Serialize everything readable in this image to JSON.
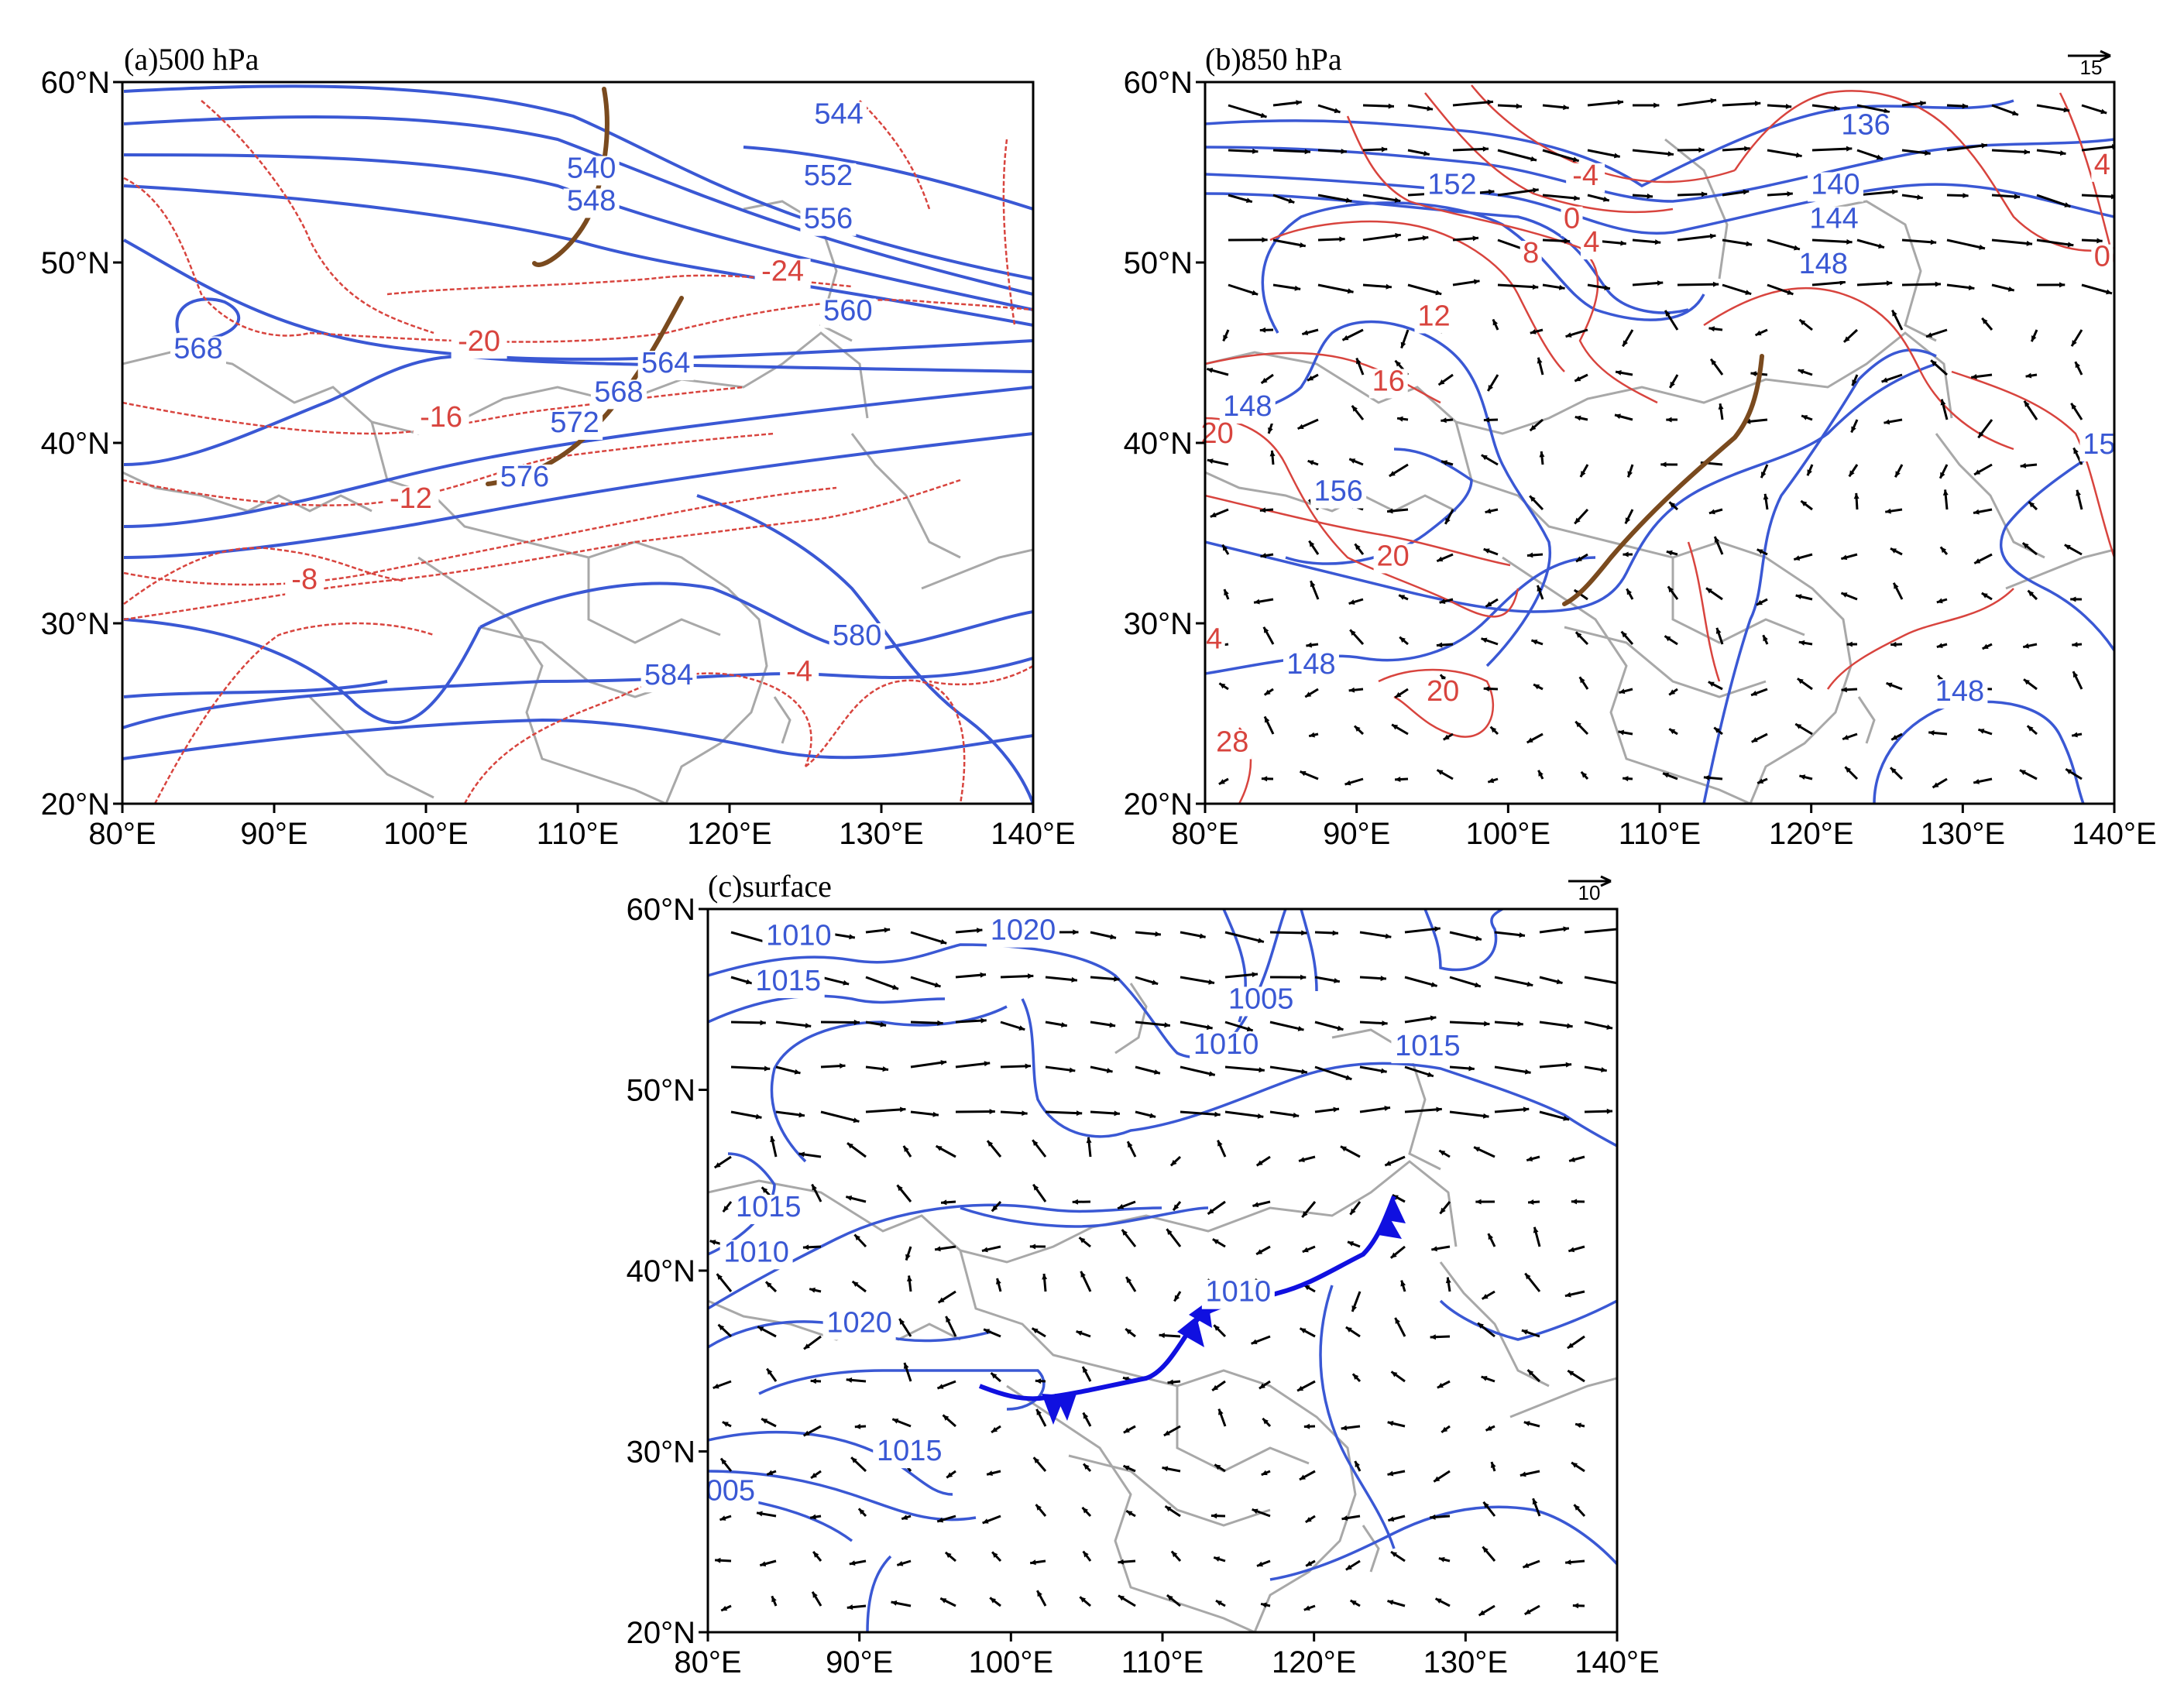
{
  "figure": {
    "colors": {
      "height_contour": "#3a58d4",
      "temperature_contour": "#d8443e",
      "border": "#a8a8a8",
      "trough": "#7a4a1e",
      "front": "#1010e0",
      "wind": "#000000"
    },
    "xaxis": {
      "ticks": [
        80,
        90,
        100,
        110,
        120,
        130,
        140
      ],
      "labels": [
        "80°E",
        "90°E",
        "100°E",
        "110°E",
        "120°E",
        "130°E",
        "140°E"
      ]
    },
    "yaxis": {
      "ticks": [
        20,
        30,
        40,
        50,
        60
      ],
      "labels": [
        "20°N",
        "30°N",
        "40°N",
        "50°N",
        "60°N"
      ]
    }
  },
  "panels": [
    {
      "id": "a",
      "title": "(a)500 hPa",
      "has_wind": false,
      "ref_vector": null,
      "height_labels": [
        {
          "text": "540",
          "lon": 110.9,
          "lat": 54.7
        },
        {
          "text": "548",
          "lon": 110.9,
          "lat": 52.9
        },
        {
          "text": "544",
          "lon": 127.2,
          "lat": 57.7
        },
        {
          "text": "552",
          "lon": 126.5,
          "lat": 54.3
        },
        {
          "text": "556",
          "lon": 126.5,
          "lat": 51.9
        },
        {
          "text": "560",
          "lon": 127.8,
          "lat": 46.8
        },
        {
          "text": "564",
          "lon": 115.8,
          "lat": 43.9
        },
        {
          "text": "568",
          "lon": 85.0,
          "lat": 44.7
        },
        {
          "text": "568",
          "lon": 112.7,
          "lat": 42.3
        },
        {
          "text": "572",
          "lon": 109.8,
          "lat": 40.6
        },
        {
          "text": "576",
          "lon": 106.5,
          "lat": 37.6
        },
        {
          "text": "580",
          "lon": 128.4,
          "lat": 28.8
        },
        {
          "text": "584",
          "lon": 116.0,
          "lat": 26.6
        }
      ],
      "temperature_labels": [
        {
          "text": "-24",
          "lon": 123.5,
          "lat": 49.0
        },
        {
          "text": "-20",
          "lon": 103.5,
          "lat": 45.1
        },
        {
          "text": "-16",
          "lon": 101.0,
          "lat": 40.9
        },
        {
          "text": "-12",
          "lon": 99.0,
          "lat": 36.4
        },
        {
          "text": "-8",
          "lon": 92.0,
          "lat": 31.9
        },
        {
          "text": "-4",
          "lon": 124.6,
          "lat": 26.8
        }
      ]
    },
    {
      "id": "b",
      "title": "(b)850 hPa",
      "has_wind": true,
      "ref_vector": "15",
      "height_labels": [
        {
          "text": "136",
          "lon": 123.6,
          "lat": 57.1
        },
        {
          "text": "140",
          "lon": 121.6,
          "lat": 53.8
        },
        {
          "text": "144",
          "lon": 121.5,
          "lat": 51.9
        },
        {
          "text": "148",
          "lon": 120.8,
          "lat": 49.4
        },
        {
          "text": "152",
          "lon": 96.3,
          "lat": 53.8
        },
        {
          "text": "148",
          "lon": 82.8,
          "lat": 41.5
        },
        {
          "text": "156",
          "lon": 88.8,
          "lat": 36.8
        },
        {
          "text": "148",
          "lon": 87.0,
          "lat": 27.2
        },
        {
          "text": "148",
          "lon": 129.8,
          "lat": 25.7
        },
        {
          "text": "15",
          "lon": 139.0,
          "lat": 39.4
        }
      ],
      "temperature_labels": [
        {
          "text": "-4",
          "lon": 105.1,
          "lat": 54.3
        },
        {
          "text": "0",
          "lon": 104.2,
          "lat": 51.9
        },
        {
          "text": "4",
          "lon": 105.5,
          "lat": 50.6
        },
        {
          "text": "4",
          "lon": 139.2,
          "lat": 54.9
        },
        {
          "text": "0",
          "lon": 139.2,
          "lat": 49.8
        },
        {
          "text": "8",
          "lon": 101.5,
          "lat": 50.0
        },
        {
          "text": "12",
          "lon": 95.1,
          "lat": 46.5
        },
        {
          "text": "16",
          "lon": 92.1,
          "lat": 42.9
        },
        {
          "text": "20",
          "lon": 80.8,
          "lat": 40.0
        },
        {
          "text": "20",
          "lon": 92.4,
          "lat": 33.2
        },
        {
          "text": "20",
          "lon": 95.7,
          "lat": 25.7
        },
        {
          "text": "28",
          "lon": 81.8,
          "lat": 22.9
        },
        {
          "text": "4",
          "lon": 80.6,
          "lat": 28.6
        }
      ]
    },
    {
      "id": "c",
      "title": "(c)surface",
      "has_wind": true,
      "ref_vector": "10",
      "height_labels": [
        {
          "text": "1010",
          "lon": 86.0,
          "lat": 58.0
        },
        {
          "text": "1015",
          "lon": 85.3,
          "lat": 55.5
        },
        {
          "text": "1020",
          "lon": 100.8,
          "lat": 58.3
        },
        {
          "text": "1005",
          "lon": 116.5,
          "lat": 54.5
        },
        {
          "text": "1010",
          "lon": 114.2,
          "lat": 52.0
        },
        {
          "text": "1015",
          "lon": 127.5,
          "lat": 51.9
        },
        {
          "text": "1015",
          "lon": 84.0,
          "lat": 43.0
        },
        {
          "text": "1010",
          "lon": 83.2,
          "lat": 40.5
        },
        {
          "text": "1020",
          "lon": 90.0,
          "lat": 36.6
        },
        {
          "text": "1010",
          "lon": 115.0,
          "lat": 38.3
        },
        {
          "text": "1015",
          "lon": 93.3,
          "lat": 29.5
        },
        {
          "text": "005",
          "lon": 81.5,
          "lat": 27.3
        }
      ],
      "temperature_labels": []
    }
  ]
}
